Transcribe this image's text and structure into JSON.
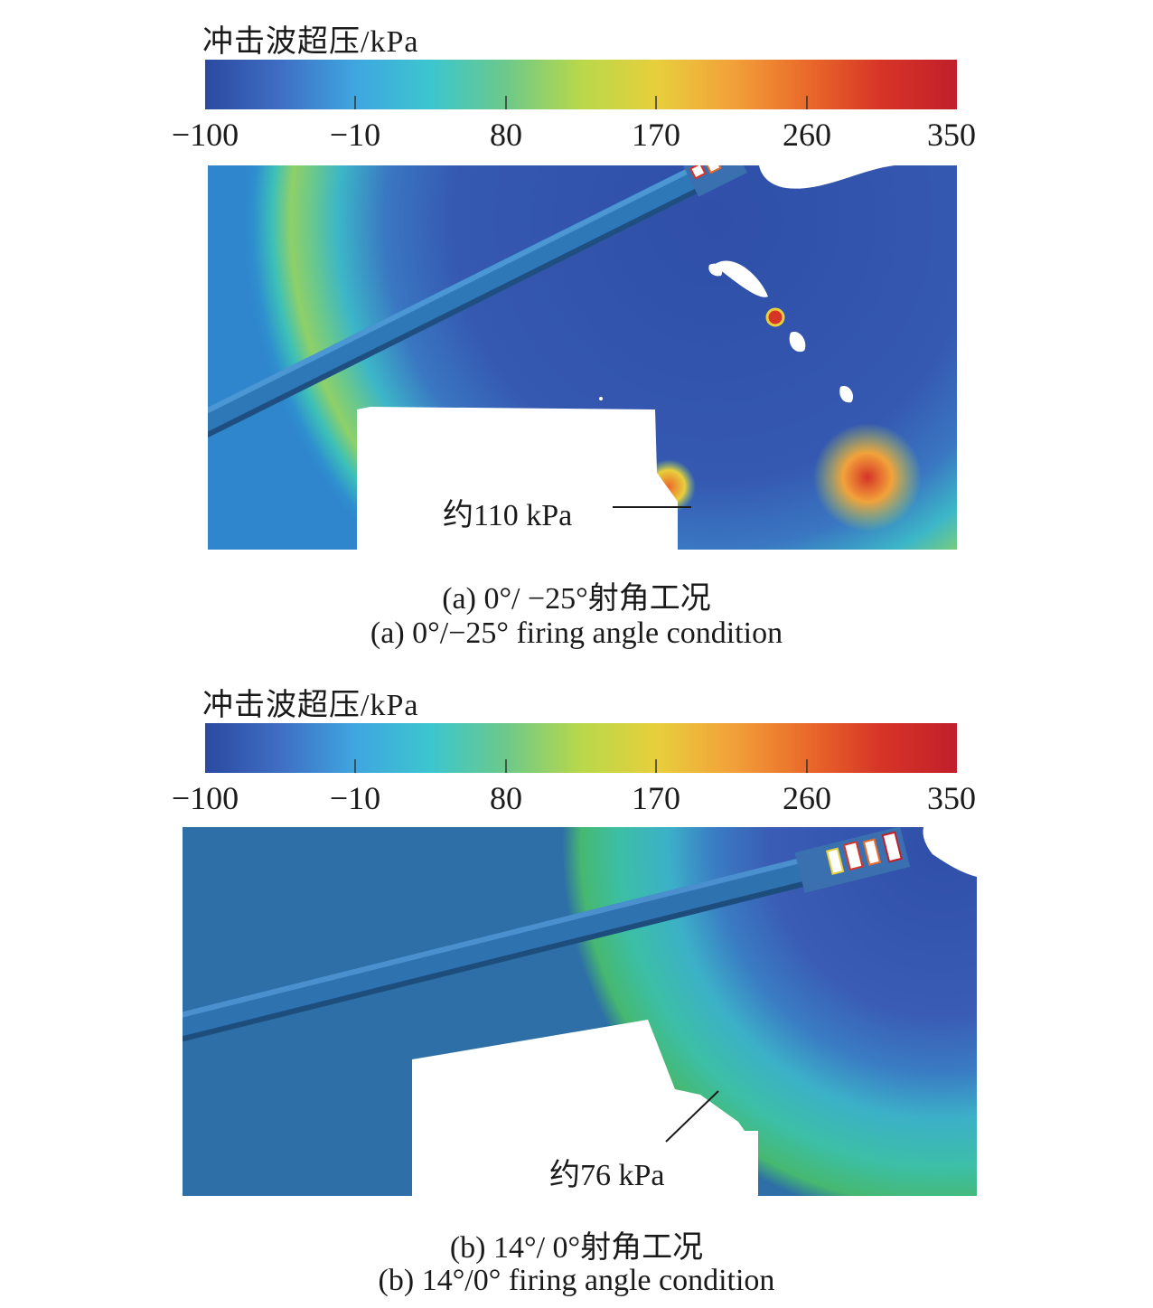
{
  "colorbar": {
    "title": "冲击波超压/kPa",
    "ticks": [
      "−100",
      "−10",
      "80",
      "170",
      "260",
      "350"
    ],
    "colors": [
      "#2a4aa0",
      "#3f6ec4",
      "#3fa6e0",
      "#3cc6cf",
      "#6cc98a",
      "#b8d84a",
      "#e8cf3c",
      "#f2a23a",
      "#ea6a2a",
      "#d63427",
      "#c11f2a"
    ]
  },
  "panel_a": {
    "annotation": "约110 kPa",
    "caption_zh": "(a) 0°/ −25°射角工况",
    "caption_en": "(a) 0°/−25° firing angle condition"
  },
  "panel_b": {
    "annotation": "约76 kPa",
    "caption_zh": "(b) 14°/ 0°射角工况",
    "caption_en": "(b) 14°/0° firing angle condition"
  }
}
